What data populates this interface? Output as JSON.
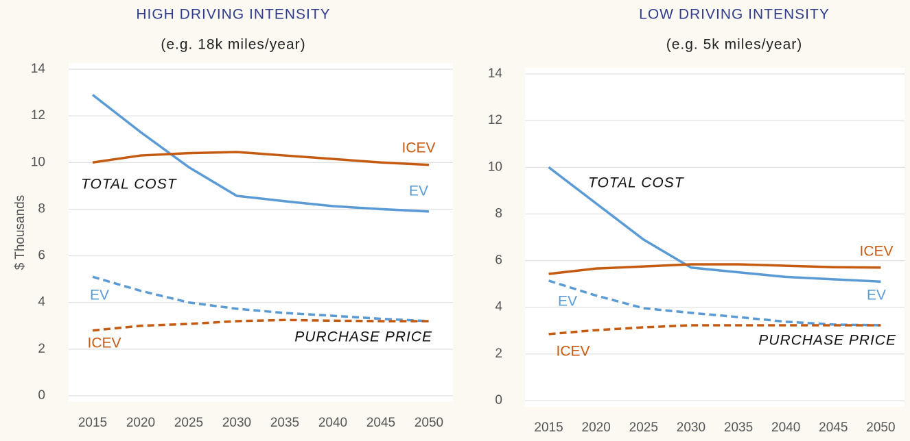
{
  "chart_data": [
    {
      "type": "line",
      "title": "HIGH DRIVING INTENSITY",
      "subtitle": "(e.g. 18k miles/year)",
      "y_label": "$ Thousands",
      "annotations": [
        "TOTAL COST",
        "PURCHASE PRICE"
      ],
      "categories": [
        2015,
        2020,
        2025,
        2030,
        2035,
        2040,
        2045,
        2050
      ],
      "ylim": [
        0,
        14
      ],
      "yticks": [
        0,
        2,
        4,
        6,
        8,
        10,
        12,
        14
      ],
      "grid": true,
      "series": [
        {
          "name": "EV",
          "color": "#5b9bd5",
          "style": "solid",
          "values": [
            12.9,
            11.3,
            9.8,
            8.57,
            8.34,
            8.13,
            8.0,
            7.9
          ]
        },
        {
          "name": "ICEV",
          "color": "#c55a11",
          "style": "solid",
          "values": [
            10.0,
            10.3,
            10.4,
            10.45,
            10.3,
            10.15,
            10.0,
            9.9
          ]
        },
        {
          "name": "EV",
          "color": "#5b9bd5",
          "style": "dashed",
          "values": [
            5.1,
            4.5,
            4.0,
            3.73,
            3.55,
            3.43,
            3.3,
            3.2
          ]
        },
        {
          "name": "ICEV",
          "color": "#c55a11",
          "style": "dashed",
          "values": [
            2.8,
            3.0,
            3.08,
            3.2,
            3.25,
            3.22,
            3.2,
            3.2
          ]
        }
      ]
    },
    {
      "type": "line",
      "title": "LOW DRIVING INTENSITY",
      "subtitle": "(e.g. 5k miles/year)",
      "annotations": [
        "TOTAL COST",
        "PURCHASE PRICE"
      ],
      "categories": [
        2015,
        2020,
        2025,
        2030,
        2035,
        2040,
        2045,
        2050
      ],
      "ylim": [
        0,
        14
      ],
      "yticks": [
        0,
        2,
        4,
        6,
        8,
        10,
        12,
        14
      ],
      "grid": true,
      "series": [
        {
          "name": "EV",
          "color": "#5b9bd5",
          "style": "solid",
          "values": [
            10.0,
            8.45,
            6.9,
            5.7,
            5.5,
            5.3,
            5.2,
            5.1
          ]
        },
        {
          "name": "ICEV",
          "color": "#c55a11",
          "style": "solid",
          "values": [
            5.43,
            5.66,
            5.75,
            5.84,
            5.84,
            5.78,
            5.72,
            5.7
          ]
        },
        {
          "name": "EV",
          "color": "#5b9bd5",
          "style": "dashed",
          "values": [
            5.14,
            4.5,
            3.96,
            3.76,
            3.58,
            3.38,
            3.26,
            3.23
          ]
        },
        {
          "name": "ICEV",
          "color": "#c55a11",
          "style": "dashed",
          "values": [
            2.85,
            3.02,
            3.14,
            3.23,
            3.23,
            3.23,
            3.23,
            3.23
          ]
        }
      ]
    }
  ]
}
